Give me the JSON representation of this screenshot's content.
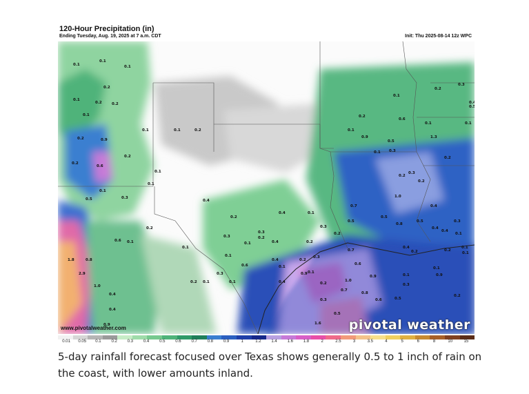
{
  "map": {
    "title": "120-Hour Precipitation (in)",
    "subtitle": "Ending Tuesday, Aug. 19, 2025 at 7 a.m. CDT",
    "init": "Init: Thu 2025-08-14 12z WPC",
    "url_watermark": "www.pivotalweather.com",
    "brand_watermark": "pivotal weather",
    "value_labels": [
      "0.1",
      "0.1",
      "0.1",
      "0.2",
      "0.2",
      "0.2",
      "0.1",
      "0.1",
      "0.2",
      "0.1",
      "0.1",
      "0.2",
      "0.9",
      "0.2",
      "0.6",
      "0.2",
      "0.1",
      "0.1",
      "0.1",
      "0.5",
      "0.3",
      "0.6",
      "0.2",
      "0.1",
      "0.8",
      "1.8",
      "2.9",
      "1.0",
      "0.4",
      "0.4",
      "0.9",
      "0.3",
      "0.1",
      "0.2",
      "0.4",
      "0.1",
      "0.3",
      "0.6",
      "0.1",
      "0.4",
      "0.1",
      "0.2",
      "0.1",
      "0.3",
      "0.2",
      "0.4",
      "0.9",
      "0.7",
      "0.6",
      "1.0",
      "0.7",
      "0.3",
      "0.9",
      "0.8",
      "0.6",
      "0.5",
      "0.3",
      "1.6",
      "0.5",
      "0.2",
      "0.1",
      "0.2",
      "0.1",
      "0.3",
      "0.2",
      "0.4",
      "0.4",
      "0.3",
      "0.2",
      "0.1",
      "0.7",
      "1.0",
      "0.5",
      "0.5",
      "0.4",
      "0.3",
      "0.5",
      "0.4",
      "0.4",
      "0.3",
      "0.2",
      "0.1",
      "0.1",
      "0.1",
      "0.2",
      "0.1",
      "0.2",
      "0.2",
      "0.2",
      "0.1",
      "0.1",
      "0.2",
      "0.1",
      "0.2",
      "0.3",
      "0.4",
      "0.5",
      "0.1",
      "0.1",
      "1.3",
      "0.6",
      "0.9",
      "0.5",
      "0.3",
      "0.8",
      "0.2",
      "0.4",
      "0.9",
      "0.1"
    ]
  },
  "legend": {
    "colors": [
      "#f2f2f2",
      "#d6d6d6",
      "#b5b5b5",
      "#9a9a9a",
      "#c6ecc6",
      "#9fdcaa",
      "#77c98f",
      "#4fb37a",
      "#2f9a68",
      "#1f7f5a",
      "#3a7fd0",
      "#2b5fc0",
      "#1f3fa8",
      "#16288a",
      "#b8a0e0",
      "#c77ad8",
      "#d85fc7",
      "#e84fa8",
      "#f06a8a",
      "#f29a7a",
      "#f4c28a",
      "#f8e08a",
      "#f0d060",
      "#e0b040",
      "#c88a30",
      "#a86028",
      "#804020",
      "#5a2c18"
    ],
    "ticks": [
      "0.01",
      "0.05",
      "0.1",
      "0.2",
      "0.3",
      "0.4",
      "0.5",
      "0.6",
      "0.7",
      "0.8",
      "0.9",
      "1",
      "1.2",
      "1.4",
      "1.6",
      "1.8",
      "2",
      "2.5",
      "3",
      "3.5",
      "4",
      "5",
      "6",
      "8",
      "10",
      "15"
    ]
  },
  "caption": "5-day rainfall forecast focused over Texas shows generally 0.5 to 1 inch of rain on the coast, with lower amounts inland."
}
